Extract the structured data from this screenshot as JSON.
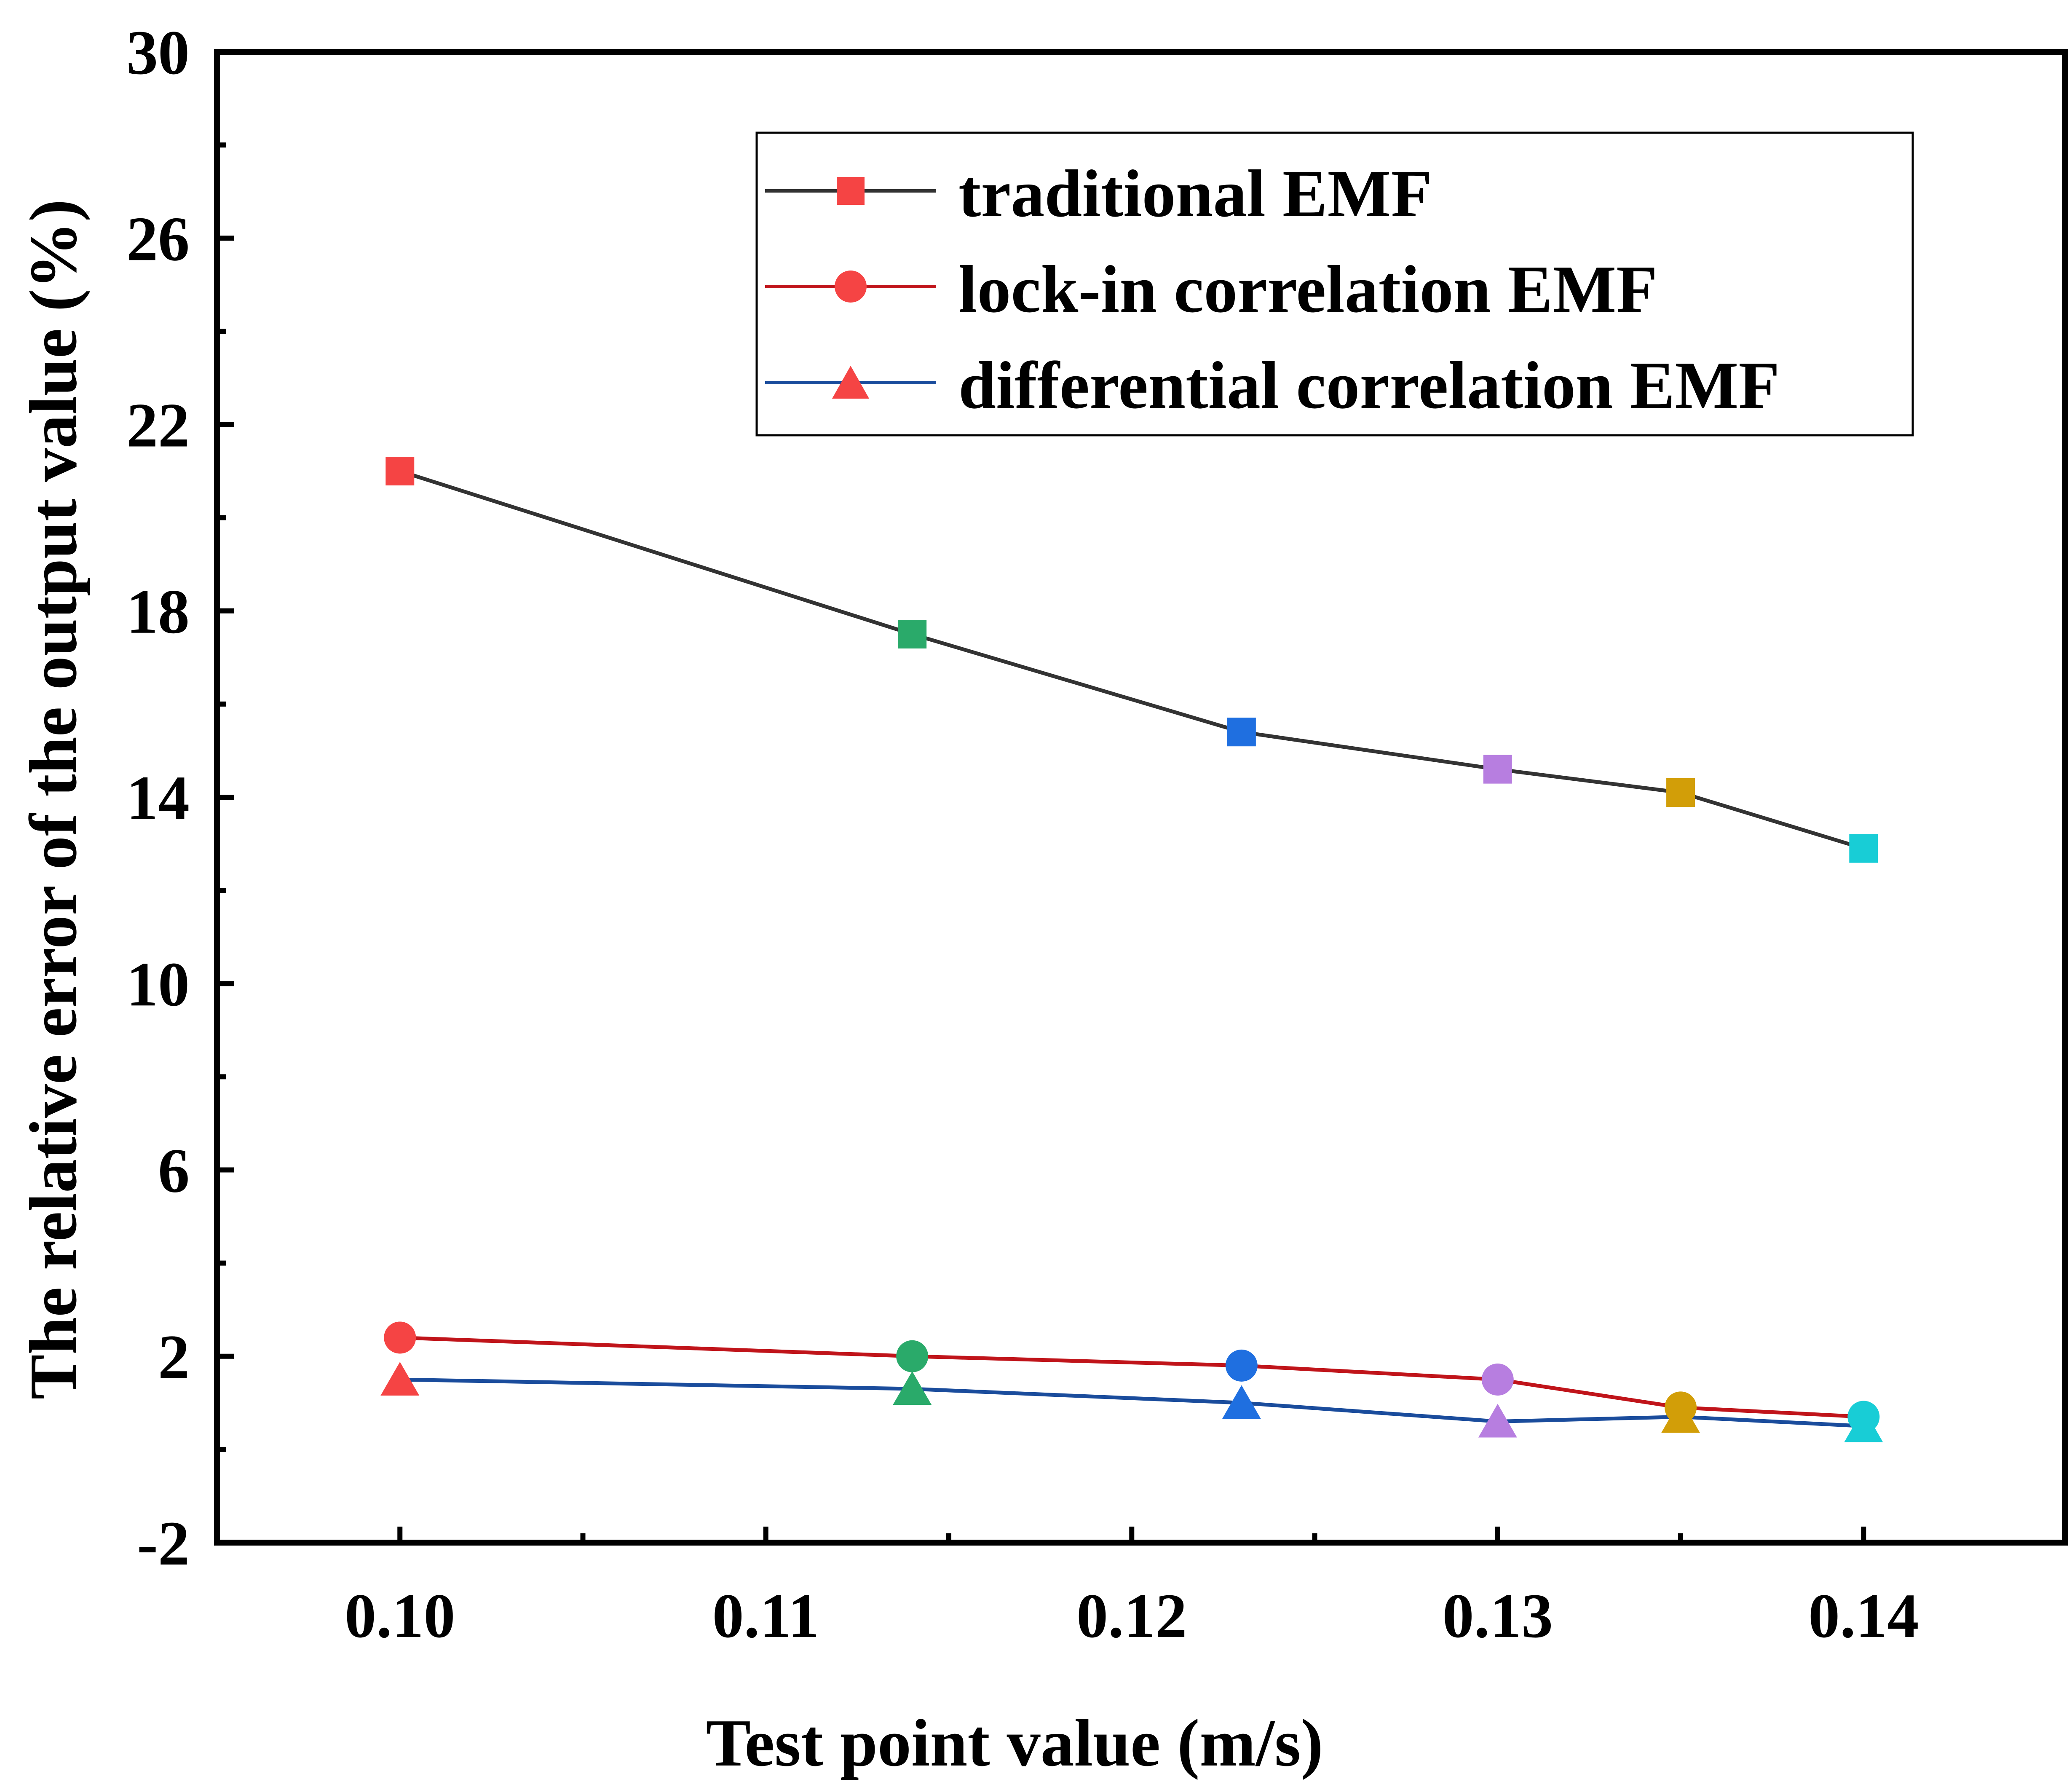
{
  "chart_data": {
    "type": "line",
    "title": "",
    "xlabel": "Test point value (m/s)",
    "ylabel": "The relative error of the output value (%)",
    "xlim": [
      0.095,
      0.1455
    ],
    "ylim": [
      -2,
      30
    ],
    "x_ticks": [
      "0.10",
      "0.11",
      "0.12",
      "0.13",
      "0.14"
    ],
    "x_tick_values": [
      0.1,
      0.11,
      0.12,
      0.13,
      0.14
    ],
    "y_ticks": [
      "-2",
      "2",
      "6",
      "10",
      "14",
      "18",
      "22",
      "26",
      "30"
    ],
    "y_tick_values": [
      -2,
      2,
      6,
      10,
      14,
      18,
      22,
      26,
      30
    ],
    "x": [
      0.1,
      0.114,
      0.123,
      0.13,
      0.135,
      0.14
    ],
    "point_colors": [
      "#f54444",
      "#2aaa6a",
      "#1f6fe0",
      "#b77ee0",
      "#d29e08",
      "#18cdd6"
    ],
    "series": [
      {
        "name": "traditional EMF",
        "marker": "square",
        "line_color": "#333333",
        "values": [
          21.0,
          17.5,
          15.4,
          14.6,
          14.1,
          12.9
        ]
      },
      {
        "name": "lock-in correlation EMF",
        "marker": "circle",
        "line_color": "#c0141a",
        "values": [
          2.4,
          2.0,
          1.8,
          1.5,
          0.9,
          0.7
        ]
      },
      {
        "name": "differential correlation EMF",
        "marker": "triangle",
        "line_color": "#1a4c9c",
        "values": [
          1.5,
          1.3,
          1.0,
          0.6,
          0.7,
          0.5
        ]
      }
    ],
    "legend": {
      "position": "top-right",
      "marker_color": "#f54444"
    },
    "grid": false
  }
}
